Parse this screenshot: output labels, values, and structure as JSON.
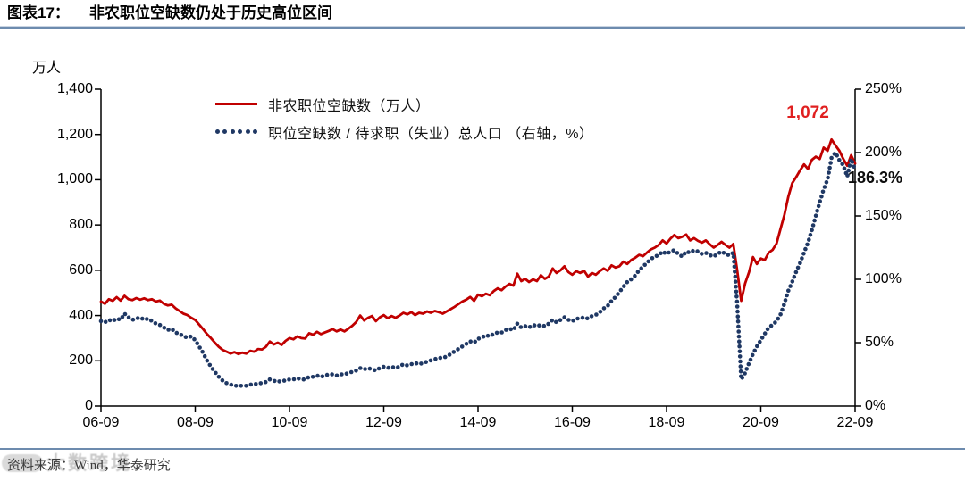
{
  "page": {
    "title_prefix": "图表17：",
    "title_text": "非农职位空缺数仍处于历史高位区间",
    "footer_source": "资料来源：Wind，华泰研究",
    "watermark_text": "大数跨境"
  },
  "colors": {
    "red_line": "#C00000",
    "red_label": "#E02020",
    "navy_dots": "#1F3864",
    "axis": "#000000",
    "separator_blue": "#6d8bae"
  },
  "chart_data": {
    "type": "line",
    "title": "非农职位空缺数仍处于历史高位区间",
    "grid": "off",
    "legend_position": "top-left-inside",
    "left_axis": {
      "unit_label": "万人",
      "min": 0,
      "max": 1400,
      "step": 200,
      "tick_labels": [
        "0",
        "200",
        "400",
        "600",
        "800",
        "1,000",
        "1,200",
        "1,400"
      ]
    },
    "right_axis": {
      "min": 0,
      "max": 250,
      "step": 50,
      "tick_labels": [
        "0%",
        "50%",
        "100%",
        "150%",
        "200%",
        "250%"
      ]
    },
    "x_axis": {
      "start": "2006-09",
      "end": "2022-09",
      "interval": "monthly",
      "tick_labels": [
        "06-09",
        "08-09",
        "10-09",
        "12-09",
        "14-09",
        "16-09",
        "18-09",
        "20-09",
        "22-09"
      ]
    },
    "legend": [
      {
        "label": "非农职位空缺数（万人）",
        "style": "solid",
        "color": "#C00000"
      },
      {
        "label": "职位空缺数 / 待求职（失业）总人口 （右轴，%）",
        "style": "dotted",
        "color": "#1F3864"
      }
    ],
    "annotations": [
      {
        "text": "1,072",
        "series": "非农职位空缺数（万人）",
        "at": "2022-09",
        "color": "#E02020"
      },
      {
        "text": "186.3%",
        "series": "职位空缺数 / 待求职（失业）总人口",
        "at": "2022-09",
        "color": "#0d0d0d"
      }
    ],
    "series": [
      {
        "name": "非农职位空缺数（万人）",
        "axis": "left",
        "style": "solid",
        "color": "#C00000",
        "start": "2006-09",
        "interval": "monthly",
        "values": [
          462,
          452,
          472,
          465,
          481,
          466,
          487,
          472,
          468,
          477,
          470,
          476,
          468,
          472,
          462,
          466,
          452,
          445,
          448,
          432,
          420,
          408,
          402,
          390,
          380,
          360,
          340,
          318,
          300,
          280,
          262,
          248,
          240,
          232,
          238,
          230,
          236,
          232,
          244,
          240,
          252,
          250,
          262,
          285,
          272,
          280,
          270,
          288,
          300,
          295,
          308,
          300,
          298,
          322,
          315,
          328,
          318,
          325,
          332,
          340,
          330,
          338,
          330,
          342,
          355,
          372,
          400,
          378,
          390,
          398,
          375,
          392,
          402,
          388,
          398,
          390,
          400,
          412,
          405,
          415,
          402,
          412,
          408,
          418,
          412,
          420,
          415,
          408,
          418,
          428,
          438,
          450,
          462,
          470,
          482,
          465,
          492,
          485,
          496,
          490,
          508,
          520,
          512,
          528,
          540,
          532,
          585,
          552,
          562,
          548,
          560,
          552,
          578,
          562,
          572,
          608,
          588,
          600,
          618,
          592,
          580,
          596,
          588,
          598,
          572,
          588,
          580,
          596,
          608,
          598,
          622,
          612,
          618,
          638,
          628,
          645,
          655,
          668,
          662,
          678,
          692,
          700,
          712,
          732,
          718,
          740,
          756,
          742,
          748,
          758,
          732,
          742,
          730,
          722,
          732,
          715,
          700,
          712,
          726,
          712,
          700,
          716,
          598,
          465,
          542,
          592,
          658,
          628,
          652,
          645,
          678,
          690,
          718,
          782,
          845,
          925,
          985,
          1012,
          1042,
          1068,
          1048,
          1088,
          1102,
          1092,
          1142,
          1128,
          1178,
          1152,
          1128,
          1092,
          1062,
          1108,
          1072
        ]
      },
      {
        "name": "职位空缺数 / 待求职（失业）总人口（右轴，%）",
        "axis": "right",
        "style": "dotted",
        "color": "#1F3864",
        "start": "2006-09",
        "interval": "monthly",
        "values": [
          67,
          66,
          68,
          67,
          69,
          68,
          73,
          70,
          68,
          69,
          70,
          68,
          69,
          67,
          65,
          64,
          62,
          60,
          61,
          58,
          57,
          55,
          54,
          55,
          52,
          47,
          42,
          36,
          31,
          27,
          23,
          20,
          18,
          17,
          16,
          16,
          16,
          16,
          17,
          17,
          18,
          18,
          19,
          21,
          20,
          19,
          20,
          20,
          21,
          21,
          22,
          21,
          21,
          23,
          23,
          24,
          23,
          24,
          25,
          25,
          24,
          25,
          25,
          26,
          27,
          28,
          30,
          29,
          30,
          29,
          28,
          30,
          31,
          30,
          31,
          30,
          31,
          33,
          32,
          33,
          34,
          33,
          34,
          35,
          36,
          37,
          38,
          38,
          39,
          41,
          43,
          45,
          47,
          49,
          51,
          50,
          53,
          54,
          56,
          55,
          57,
          58,
          58,
          60,
          61,
          60,
          65,
          62,
          63,
          62,
          64,
          63,
          64,
          63,
          65,
          68,
          66,
          68,
          70,
          68,
          67,
          69,
          69,
          70,
          69,
          71,
          72,
          74,
          77,
          79,
          83,
          86,
          90,
          94,
          98,
          100,
          103,
          107,
          110,
          113,
          116,
          118,
          119,
          122,
          120,
          122,
          123,
          120,
          118,
          122,
          121,
          123,
          122,
          120,
          121,
          119,
          118,
          120,
          122,
          120,
          119,
          121,
          80,
          21,
          26,
          34,
          41,
          47,
          52,
          57,
          62,
          64,
          67,
          72,
          81,
          91,
          98,
          106,
          113,
          121,
          129,
          139,
          150,
          161,
          171,
          179,
          196,
          200,
          194,
          190,
          181,
          195,
          186.3
        ]
      }
    ]
  }
}
